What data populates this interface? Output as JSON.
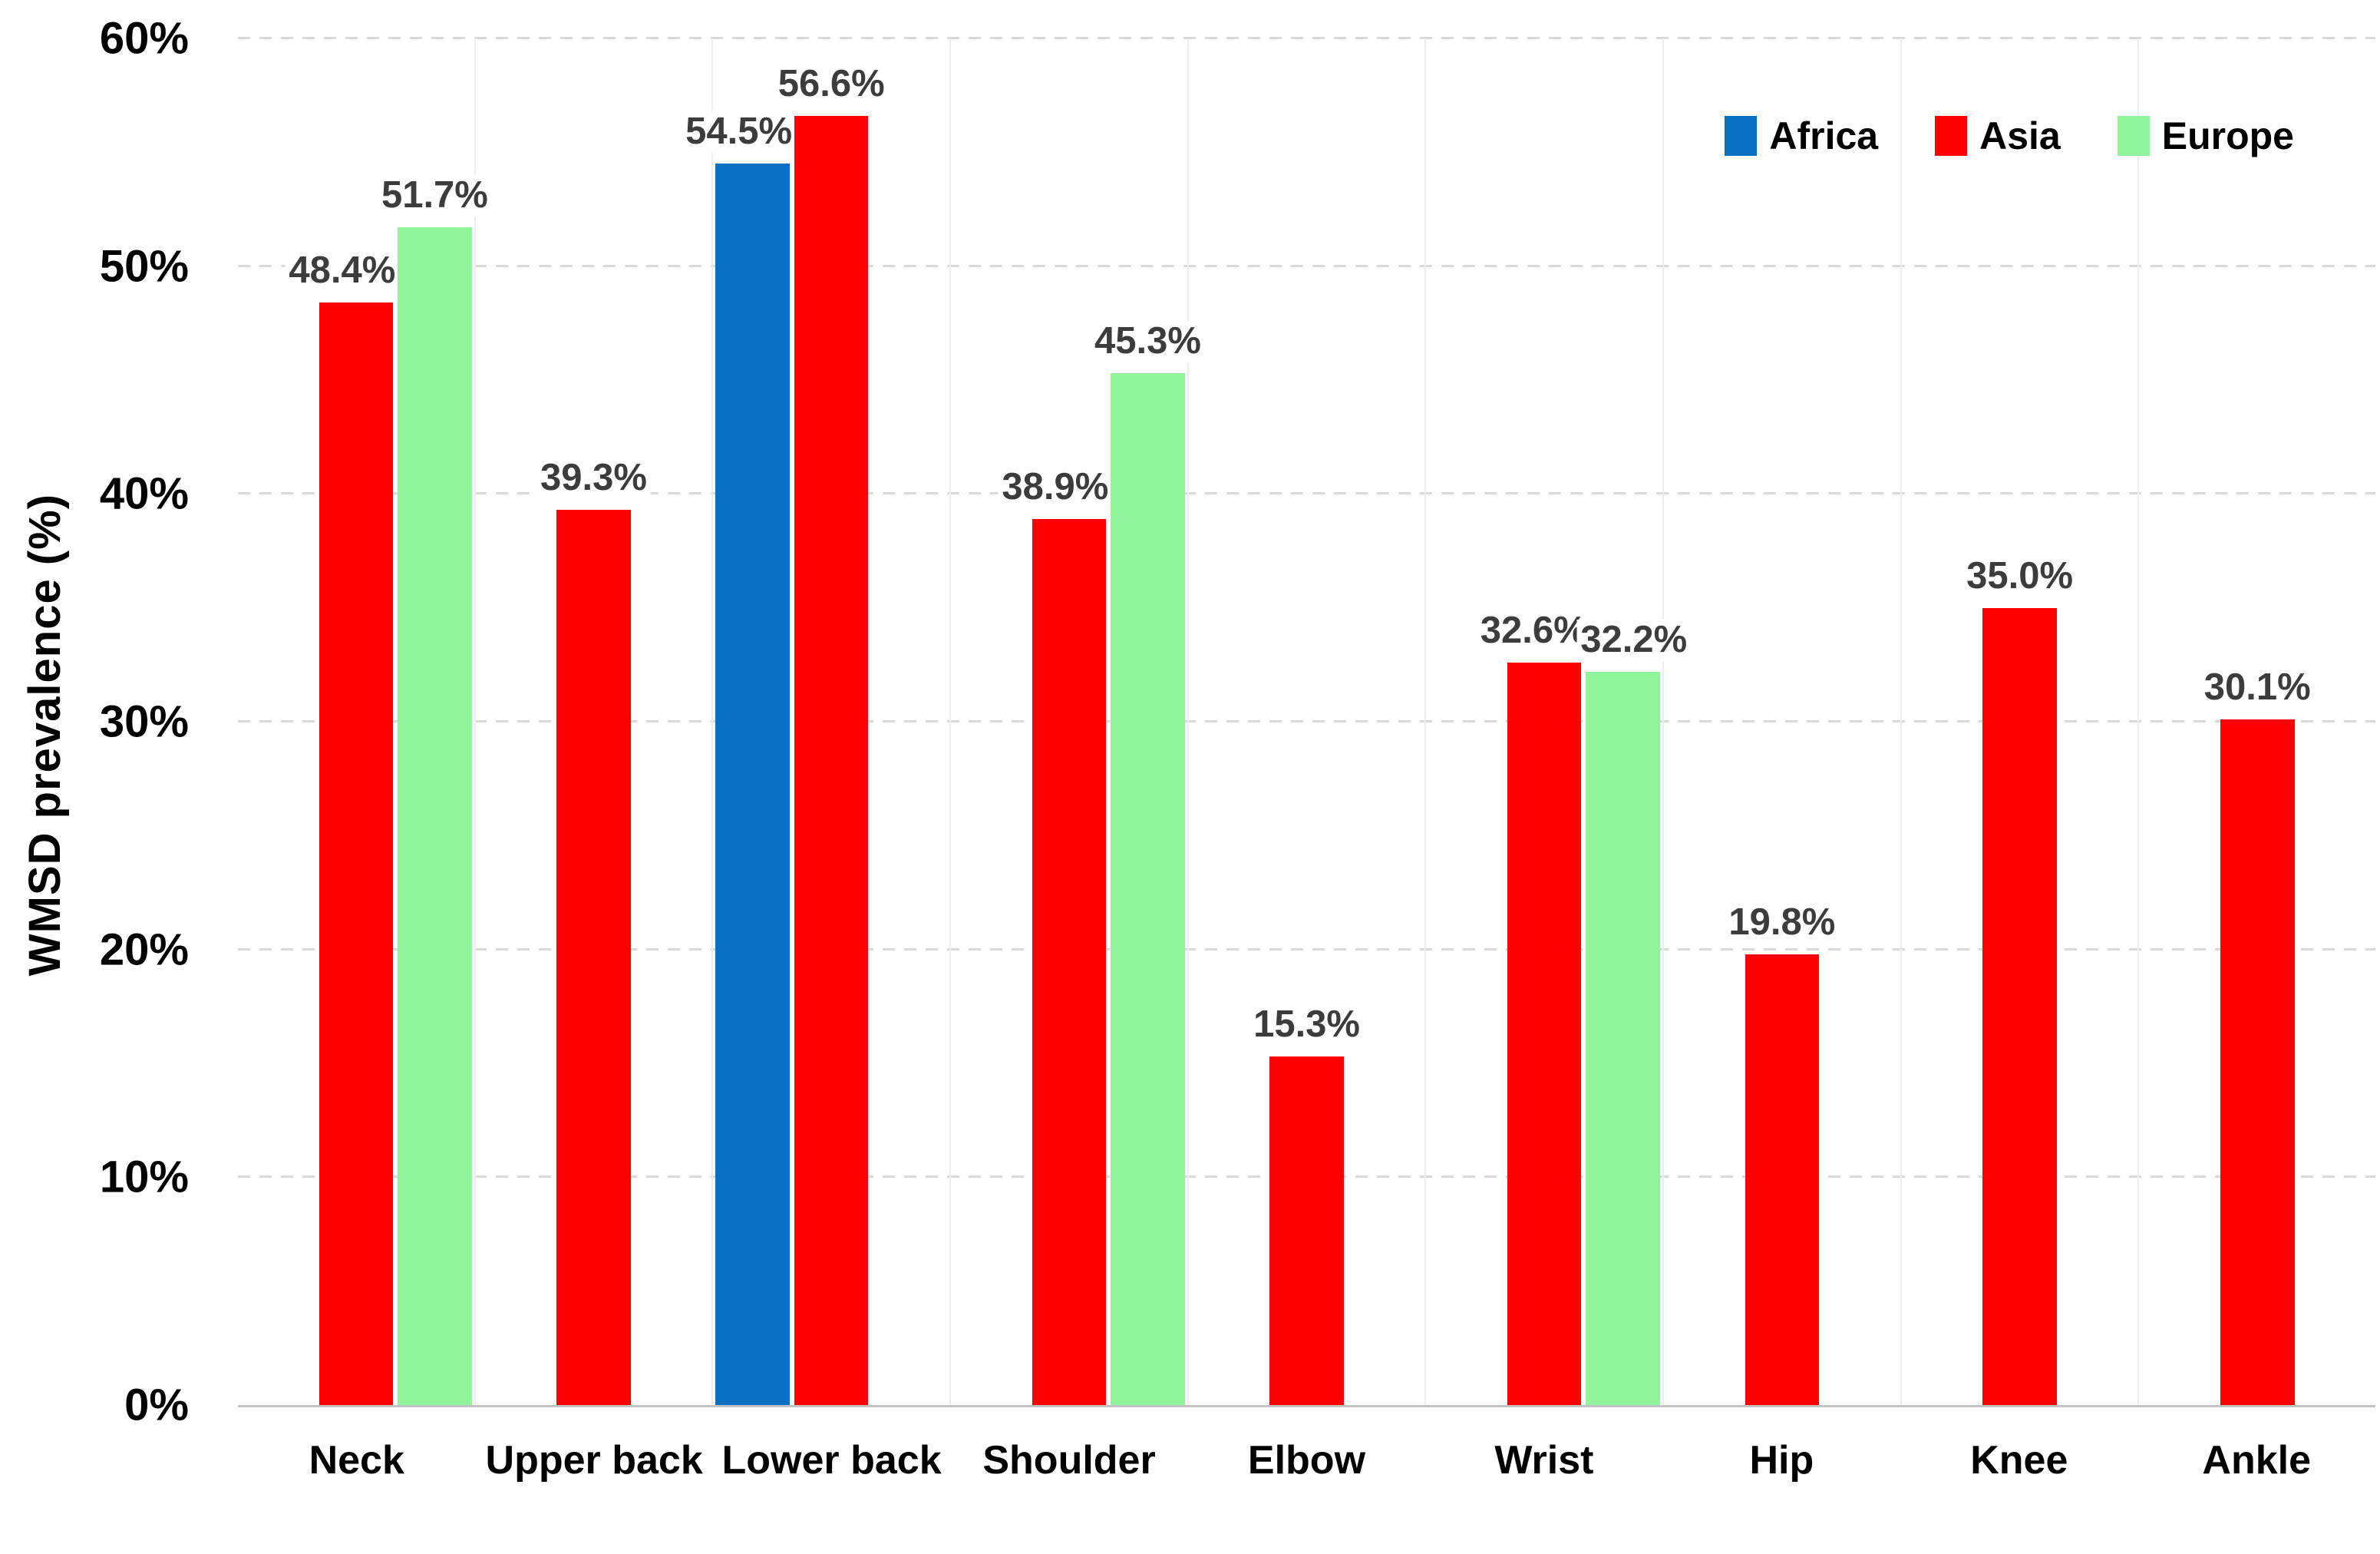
{
  "chart_data": {
    "type": "bar",
    "title": "",
    "xlabel": "",
    "ylabel": "WMSD prevalence (%)",
    "ylim": [
      0,
      60
    ],
    "ytick_step": 10,
    "ytick_labels": [
      "0%",
      "10%",
      "20%",
      "30%",
      "40%",
      "50%",
      "60%"
    ],
    "grid": "horizontal-dashed",
    "legend_position": "top-right",
    "categories": [
      "Neck",
      "Upper back",
      "Lower back",
      "Shoulder",
      "Elbow",
      "Wrist",
      "Hip",
      "Knee",
      "Ankle"
    ],
    "series": [
      {
        "name": "Africa",
        "color": "#0a71c2",
        "values": [
          null,
          null,
          54.5,
          null,
          null,
          null,
          null,
          null,
          null
        ],
        "labels": [
          null,
          null,
          "54.5%",
          null,
          null,
          null,
          null,
          null,
          null
        ]
      },
      {
        "name": "Asia",
        "color": "#ff0000",
        "values": [
          48.4,
          39.3,
          56.6,
          38.9,
          15.3,
          32.6,
          19.8,
          35.0,
          30.1
        ],
        "labels": [
          "48.4%",
          "39.3%",
          "56.6%",
          "38.9%",
          "15.3%",
          "32.6%",
          "19.8%",
          "35.0%",
          "30.1%"
        ]
      },
      {
        "name": "Europe",
        "color": "#8ff49a",
        "values": [
          51.7,
          null,
          null,
          45.3,
          null,
          32.2,
          null,
          null,
          null
        ],
        "labels": [
          "51.7%",
          null,
          null,
          "45.3%",
          null,
          "32.2%",
          null,
          null,
          null
        ]
      }
    ],
    "colors": {
      "data_label": "#3c3c3c",
      "axis_text": "#000000",
      "gridline": "#d9d9d9",
      "axis_line": "#c3c3c3"
    }
  }
}
